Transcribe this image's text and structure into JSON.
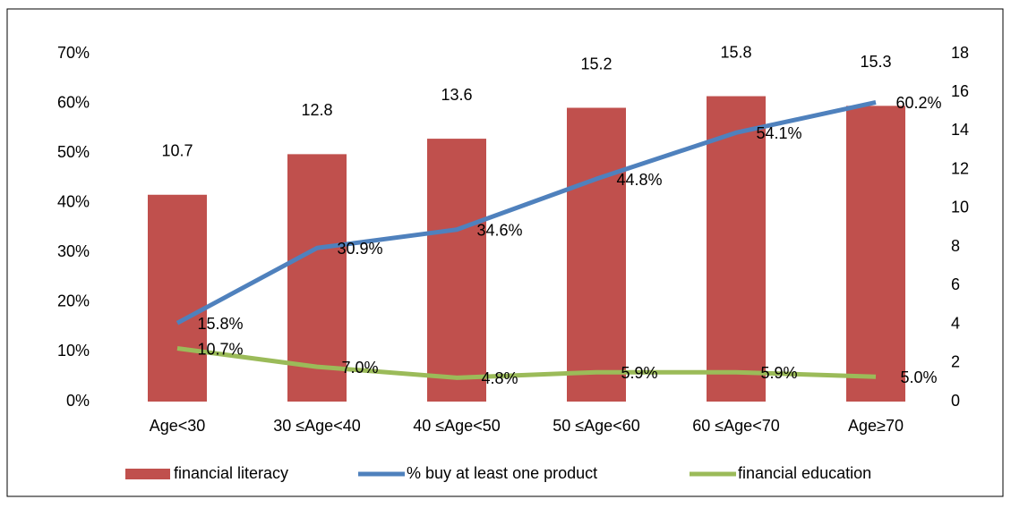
{
  "chart_data": {
    "type": "bar",
    "categories": [
      "Age<30",
      "30 ≤Age<40",
      "40 ≤Age<50",
      "50 ≤Age<60",
      "60 ≤Age<70",
      "Age≥70"
    ],
    "series": [
      {
        "name": "financial literacy",
        "type": "bar",
        "axis": "y2",
        "color": "#c0504d",
        "values": [
          10.7,
          12.8,
          13.6,
          15.2,
          15.8,
          15.3
        ]
      },
      {
        "name": "% buy at least one product",
        "type": "line",
        "axis": "y",
        "color": "#4f81bd",
        "values": [
          15.8,
          30.9,
          34.6,
          44.8,
          54.1,
          60.2
        ],
        "value_labels": [
          "15.8%",
          "30.9%",
          "34.6%",
          "44.8%",
          "54.1%",
          "60.2%"
        ]
      },
      {
        "name": "financial education",
        "type": "line",
        "axis": "y",
        "color": "#9bbb59",
        "values": [
          10.7,
          7.0,
          4.8,
          5.9,
          5.9,
          5.0
        ],
        "value_labels": [
          "10.7%",
          "7.0%",
          "4.8%",
          "5.9%",
          "5.9%",
          "5.0%"
        ]
      }
    ],
    "ylim": [
      0,
      70
    ],
    "yticks": [
      {
        "value": 0,
        "label": "0%"
      },
      {
        "value": 10,
        "label": "10%"
      },
      {
        "value": 20,
        "label": "20%"
      },
      {
        "value": 30,
        "label": "30%"
      },
      {
        "value": 40,
        "label": "40%"
      },
      {
        "value": 50,
        "label": "50%"
      },
      {
        "value": 60,
        "label": "60%"
      },
      {
        "value": 70,
        "label": "70%"
      }
    ],
    "y2lim": [
      0,
      18
    ],
    "y2ticks": [
      0,
      2,
      4,
      6,
      8,
      10,
      12,
      14,
      16,
      18
    ],
    "legend": "bottom"
  }
}
